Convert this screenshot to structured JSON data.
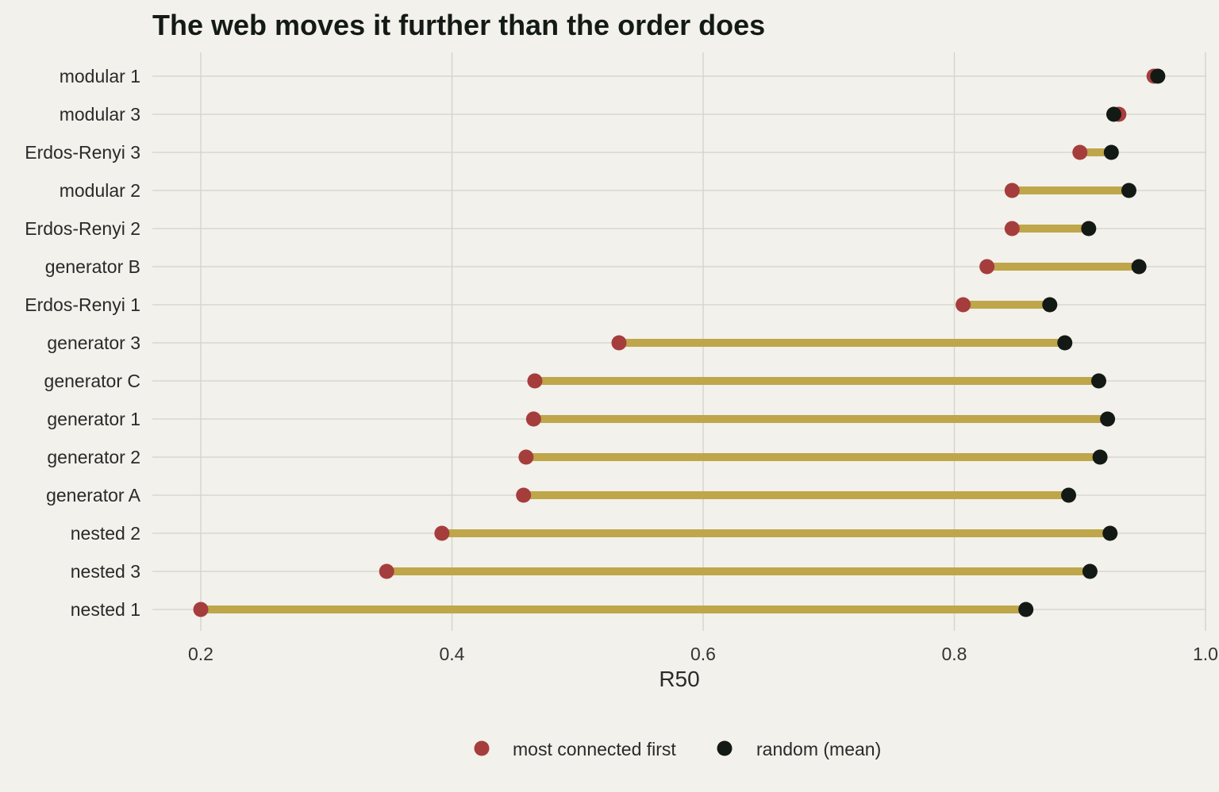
{
  "chart_data": {
    "type": "dumbbell",
    "title": "The web moves it further than the order does",
    "xlabel": "R50",
    "ylabel": "",
    "xlim": [
      0.2,
      1.0
    ],
    "xticks": [
      0.2,
      0.4,
      0.6,
      0.8,
      1.0
    ],
    "xtick_labels": [
      "0.2",
      "0.4",
      "0.6",
      "0.8",
      "1.0"
    ],
    "grid": true,
    "legend_position": "bottom",
    "categories": [
      "modular 1",
      "modular 3",
      "Erdos-Renyi 3",
      "modular 2",
      "Erdos-Renyi 2",
      "generator B",
      "Erdos-Renyi 1",
      "generator 3",
      "generator C",
      "generator 1",
      "generator 2",
      "generator A",
      "nested 2",
      "nested 3",
      "nested 1"
    ],
    "series": [
      {
        "name": "most connected first",
        "color": "#a63d3d",
        "values": [
          0.959,
          0.931,
          0.9,
          0.846,
          0.846,
          0.826,
          0.807,
          0.533,
          0.466,
          0.465,
          0.459,
          0.457,
          0.392,
          0.348,
          0.2
        ]
      },
      {
        "name": "random (mean)",
        "color": "#131a16",
        "values": [
          0.962,
          0.927,
          0.925,
          0.939,
          0.907,
          0.947,
          0.876,
          0.888,
          0.915,
          0.922,
          0.916,
          0.891,
          0.924,
          0.908,
          0.857
        ]
      }
    ],
    "connector_color": "#bfa64a",
    "colors": {
      "background": "#f2f1eb",
      "grid": "#d3d2cc"
    }
  }
}
